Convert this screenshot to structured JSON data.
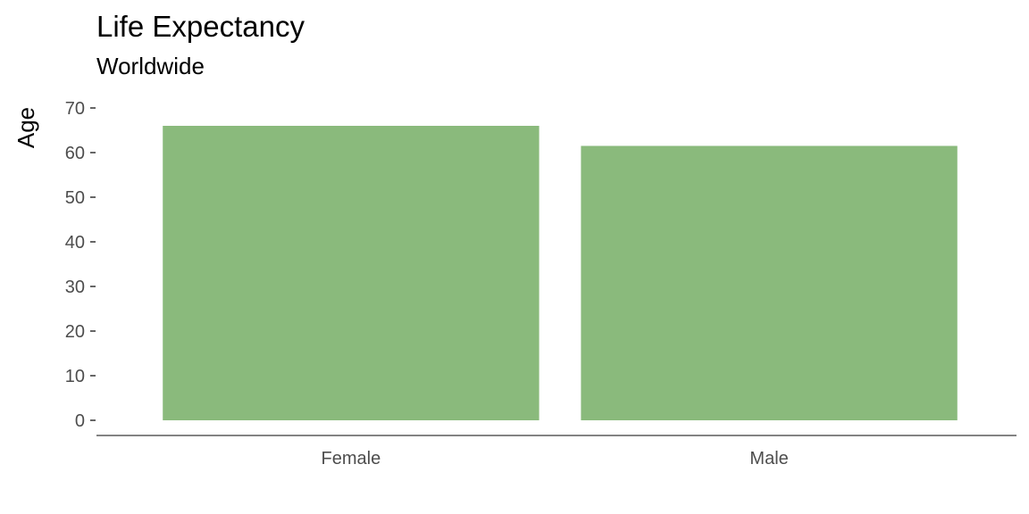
{
  "chart_data": {
    "type": "bar",
    "title": "Life Expectancy",
    "subtitle": "Worldwide",
    "xlabel": "",
    "ylabel": "Age",
    "categories": [
      "Female",
      "Male"
    ],
    "values": [
      66,
      61.5
    ],
    "ylim": [
      0,
      70
    ],
    "yticks": [
      0,
      10,
      20,
      30,
      40,
      50,
      60,
      70
    ],
    "bar_color": "#8aba7c",
    "grid": false,
    "legend": "none"
  }
}
